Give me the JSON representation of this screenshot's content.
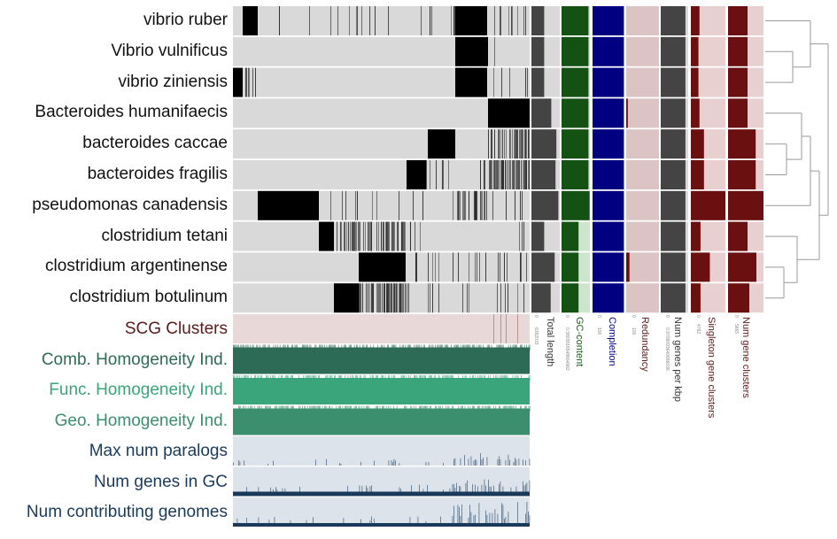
{
  "genomes": [
    {
      "name": "vibrio ruber",
      "total_length": 0.45,
      "gc_content": 0.95,
      "completion": 0.98,
      "redundancy": 0.0,
      "num_genes_per_kbp": 0.9,
      "singleton_gene_clusters": 0.25,
      "num_gene_clusters": 0.55
    },
    {
      "name": "Vibrio vulnificus",
      "total_length": 0.45,
      "gc_content": 0.95,
      "completion": 0.98,
      "redundancy": 0.0,
      "num_genes_per_kbp": 0.9,
      "singleton_gene_clusters": 0.22,
      "num_gene_clusters": 0.55
    },
    {
      "name": "vibrio ziniensis",
      "total_length": 0.45,
      "gc_content": 0.95,
      "completion": 0.98,
      "redundancy": 0.0,
      "num_genes_per_kbp": 0.9,
      "singleton_gene_clusters": 0.22,
      "num_gene_clusters": 0.55
    },
    {
      "name": "Bacteroides humanifaecis",
      "total_length": 0.7,
      "gc_content": 0.95,
      "completion": 0.98,
      "redundancy": 0.05,
      "num_genes_per_kbp": 0.9,
      "singleton_gene_clusters": 0.25,
      "num_gene_clusters": 0.55
    },
    {
      "name": "bacteroides caccae",
      "total_length": 0.88,
      "gc_content": 0.95,
      "completion": 0.98,
      "redundancy": 0.0,
      "num_genes_per_kbp": 0.9,
      "singleton_gene_clusters": 0.38,
      "num_gene_clusters": 0.78
    },
    {
      "name": "bacteroides fragilis",
      "total_length": 0.85,
      "gc_content": 0.95,
      "completion": 0.98,
      "redundancy": 0.0,
      "num_genes_per_kbp": 0.9,
      "singleton_gene_clusters": 0.38,
      "num_gene_clusters": 0.78
    },
    {
      "name": "pseudomonas canadensis",
      "total_length": 0.95,
      "gc_content": 0.99,
      "completion": 0.98,
      "redundancy": 0.0,
      "num_genes_per_kbp": 0.9,
      "singleton_gene_clusters": 1.0,
      "num_gene_clusters": 1.0
    },
    {
      "name": "clostridium tetani",
      "total_length": 0.45,
      "gc_content": 0.6,
      "completion": 0.98,
      "redundancy": 0.0,
      "num_genes_per_kbp": 0.9,
      "singleton_gene_clusters": 0.28,
      "num_gene_clusters": 0.55
    },
    {
      "name": "clostridium argentinense",
      "total_length": 0.82,
      "gc_content": 0.6,
      "completion": 0.98,
      "redundancy": 0.1,
      "num_genes_per_kbp": 0.9,
      "singleton_gene_clusters": 0.55,
      "num_gene_clusters": 0.8
    },
    {
      "name": "clostridium botulinum",
      "total_length": 0.68,
      "gc_content": 0.6,
      "completion": 0.98,
      "redundancy": 0.0,
      "num_genes_per_kbp": 0.9,
      "singleton_gene_clusters": 0.28,
      "num_gene_clusters": 0.6
    }
  ],
  "layers": [
    {
      "label": "SCG Clusters",
      "color": "#5c1a1a"
    },
    {
      "label": "Comb. Homogeneity Ind.",
      "color": "#2e6b57"
    },
    {
      "label": "Func. Homogeneity Ind.",
      "color": "#3aa57a"
    },
    {
      "label": "Geo. Homogeneity Ind.",
      "color": "#3c8f6e"
    },
    {
      "label": "Max num paralogs",
      "color": "#1a3a5c"
    },
    {
      "label": "Num genes in GC",
      "color": "#1a3a5c"
    },
    {
      "label": "Num contributing genomes",
      "color": "#1a3a5c"
    }
  ],
  "columns": [
    {
      "label": "Total length",
      "color": "#333333",
      "fill": "#444444",
      "min": "0",
      "max": "6382033"
    },
    {
      "label": "GC-content",
      "color": "#1a5e1a",
      "fill": "#145214",
      "min": "0",
      "max": "0.3803816548604962"
    },
    {
      "label": "Completion",
      "color": "#00008b",
      "fill": "#000080",
      "min": "0",
      "max": "100"
    },
    {
      "label": "Redundancy",
      "color": "#5c1a1a",
      "fill": "#6b1010",
      "min": "0",
      "max": "100"
    },
    {
      "label": "Num genes per kbp",
      "color": "#333333",
      "fill": "#444444",
      "min": "0",
      "max": "0.9709093640656036"
    },
    {
      "label": "Singleton gene clusters",
      "color": "#5c1a1a",
      "fill": "#6b1010",
      "min": "0",
      "max": "4792"
    },
    {
      "label": "Num gene clusters",
      "color": "#5c1a1a",
      "fill": "#6b1010",
      "min": "0",
      "max": "5665"
    }
  ],
  "colors": {
    "row_bg": "#d9d9d9",
    "presence": "#000000",
    "scg_bg": "#e8d8d8",
    "comb": "#2e6b57",
    "func": "#3aa57a",
    "geo": "#3c8f6e",
    "paralog_bg": "#dde3ea",
    "dendrogram": "#999999",
    "redundancy_bg": "#dcc4c4",
    "singleton_bg": "#e8d0d0"
  }
}
